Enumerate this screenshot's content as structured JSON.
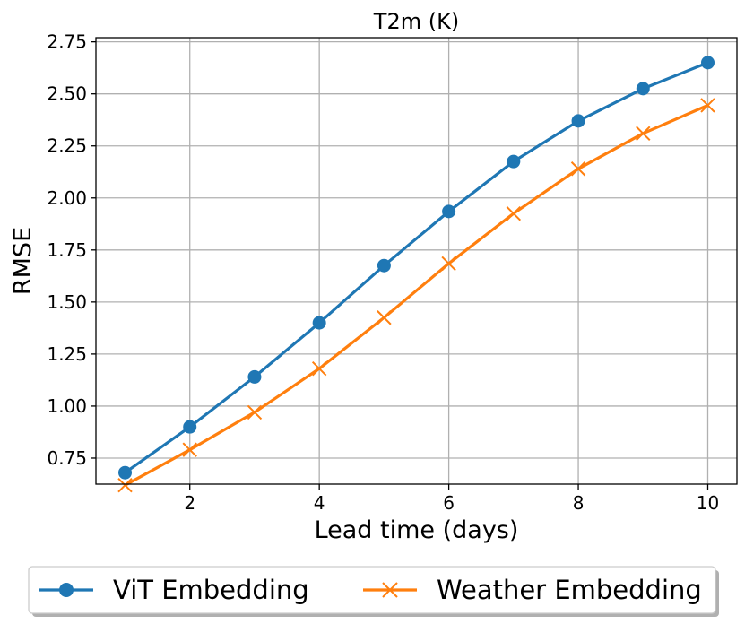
{
  "chart_data": {
    "type": "line",
    "title": "T2m (K)",
    "xlabel": "Lead time (days)",
    "ylabel": "RMSE",
    "x": [
      1,
      2,
      3,
      4,
      5,
      6,
      7,
      8,
      9,
      10
    ],
    "xlim": [
      0.55,
      10.45
    ],
    "ylim": [
      0.625,
      2.77
    ],
    "xticks": [
      2,
      4,
      6,
      8,
      10
    ],
    "xtick_labels": [
      "2",
      "4",
      "6",
      "8",
      "10"
    ],
    "yticks": [
      0.75,
      1.0,
      1.25,
      1.5,
      1.75,
      2.0,
      2.25,
      2.5,
      2.75
    ],
    "ytick_labels": [
      "0.75",
      "1.00",
      "1.25",
      "1.50",
      "1.75",
      "2.00",
      "2.25",
      "2.50",
      "2.75"
    ],
    "grid": true,
    "legend_position": "below",
    "series": [
      {
        "name": "ViT Embedding",
        "color": "#1f77b4",
        "marker": "circle",
        "values": [
          0.68,
          0.9,
          1.14,
          1.4,
          1.675,
          1.935,
          2.175,
          2.37,
          2.525,
          2.65
        ]
      },
      {
        "name": "Weather Embedding",
        "color": "#ff7f0e",
        "marker": "x",
        "values": [
          0.62,
          0.79,
          0.97,
          1.18,
          1.425,
          1.685,
          1.925,
          2.14,
          2.31,
          2.445
        ]
      }
    ]
  }
}
